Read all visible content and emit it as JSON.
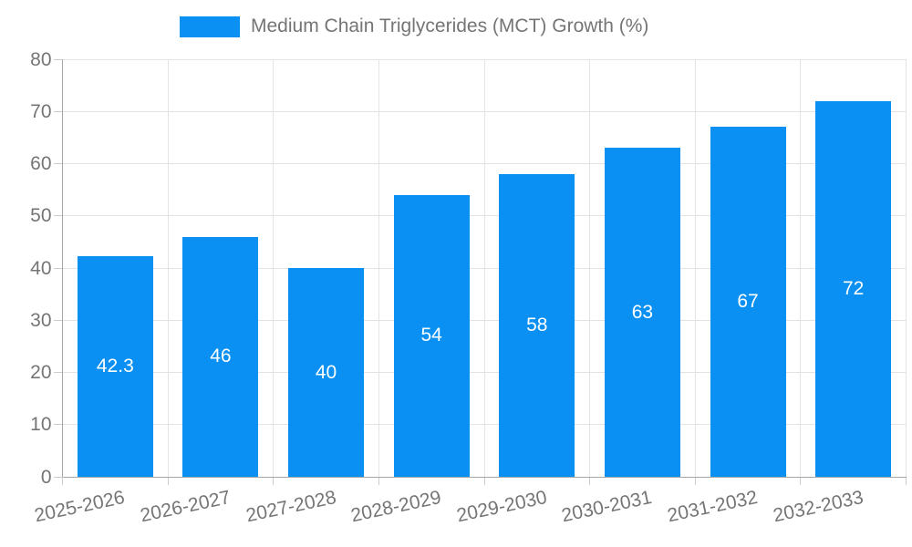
{
  "chart_data": {
    "type": "bar",
    "title": "",
    "legend": "Medium Chain Triglycerides (MCT) Growth (%)",
    "legend_position": "top",
    "categories": [
      "2025-2026",
      "2026-2027",
      "2027-2028",
      "2028-2029",
      "2029-2030",
      "2030-2031",
      "2031-2032",
      "2032-2033"
    ],
    "series": [
      {
        "name": "Medium Chain Triglycerides (MCT) Growth (%)",
        "values": [
          42.3,
          46,
          40,
          54,
          58,
          63,
          67,
          72
        ]
      }
    ],
    "value_labels": [
      "42.3",
      "46",
      "40",
      "54",
      "58",
      "63",
      "67",
      "72"
    ],
    "xlabel": "",
    "ylabel": "",
    "ylim": [
      0,
      80
    ],
    "ytick_step": 10,
    "yticks": [
      0,
      10,
      20,
      30,
      40,
      50,
      60,
      70,
      80
    ],
    "grid": true,
    "x_label_rotation_deg": -12,
    "colors": {
      "bar": "#0a90f2",
      "value_label": "#ffffff",
      "axis_text": "#757575",
      "grid_line": "#e3e3e3",
      "axis_line": "#a6a6a6",
      "tick": "#cccccc",
      "background": "#ffffff"
    }
  }
}
